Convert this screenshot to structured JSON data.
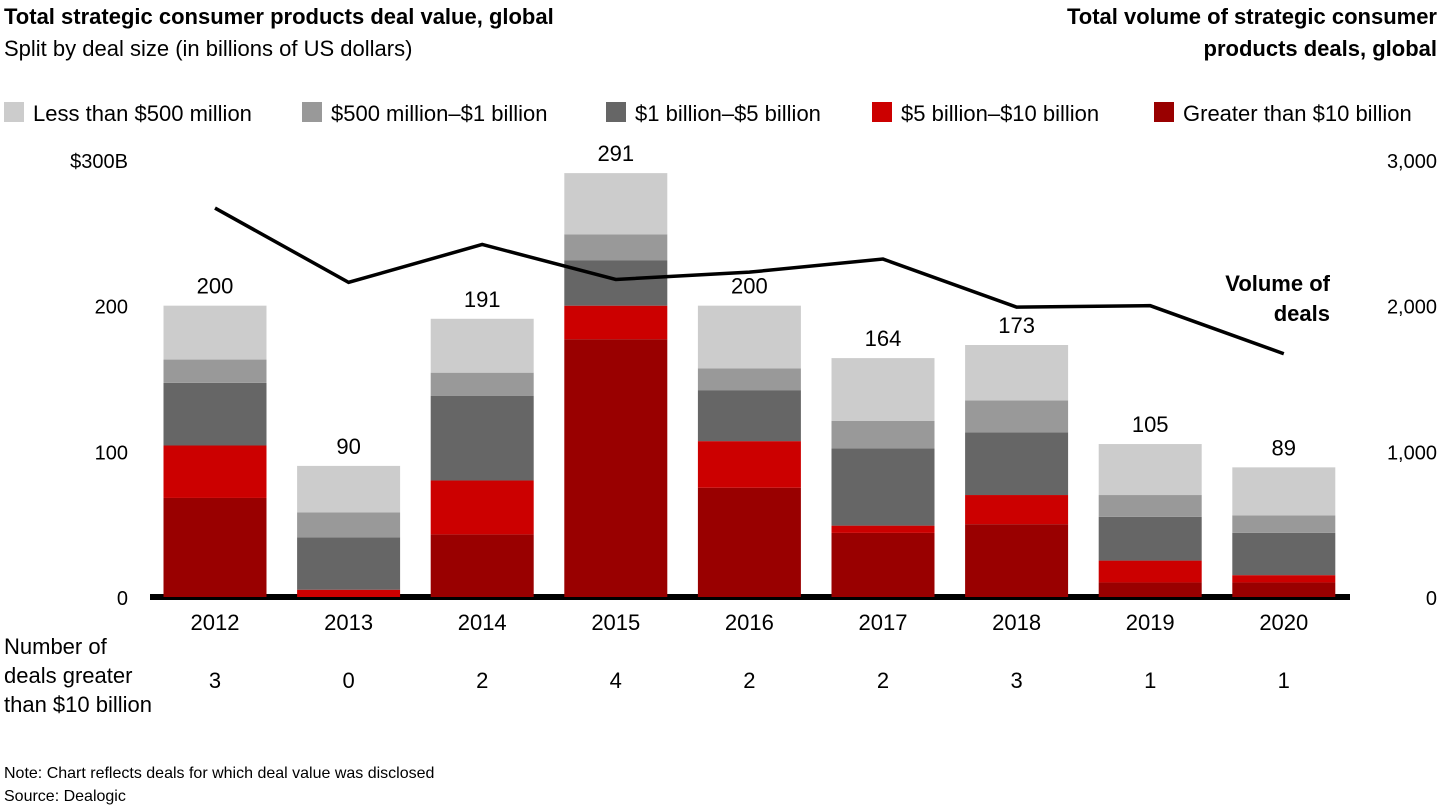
{
  "chart_data": {
    "type": "bar",
    "stacked": true,
    "title": "Total strategic consumer products deal value, global",
    "subtitle": "Split by deal size (in billions of US dollars)",
    "right_title": [
      "Total volume of strategic consumer",
      "products deals, global"
    ],
    "categories": [
      "2012",
      "2013",
      "2014",
      "2015",
      "2016",
      "2017",
      "2018",
      "2019",
      "2020"
    ],
    "totals": [
      200,
      90,
      191,
      291,
      200,
      164,
      173,
      105,
      89
    ],
    "series": [
      {
        "name": "Greater than $10 billion",
        "color": "#990000",
        "values": [
          68,
          0,
          43,
          177,
          75,
          44,
          50,
          10,
          10
        ]
      },
      {
        "name": "$5 billion–$10 billion",
        "color": "#cc0000",
        "values": [
          36,
          5,
          37,
          23,
          32,
          5,
          20,
          15,
          5
        ]
      },
      {
        "name": "$1 billion–$5 billion",
        "color": "#666666",
        "values": [
          43,
          36,
          58,
          31,
          35,
          53,
          43,
          30,
          29
        ]
      },
      {
        "name": "$500 million–$1 billion",
        "color": "#999999",
        "values": [
          16,
          17,
          16,
          18,
          15,
          19,
          22,
          15,
          12
        ]
      },
      {
        "name": "Less than $500 million",
        "color": "#cccccc",
        "values": [
          37,
          32,
          37,
          42,
          43,
          43,
          38,
          35,
          33
        ]
      }
    ],
    "legend_order": [
      "Less than $500 million",
      "$500 million–$1 billion",
      "$1 billion–$5 billion",
      "$5 billion–$10 billion",
      "Greater than $10 billion"
    ],
    "line_series": {
      "name": [
        "Volume of",
        "deals"
      ],
      "axis": "right",
      "color": "#000000",
      "values": [
        2670,
        2160,
        2420,
        2180,
        2230,
        2320,
        1990,
        2000,
        1670
      ]
    },
    "y_left": {
      "range": [
        0,
        300
      ],
      "ticks": [
        0,
        100,
        200,
        300
      ],
      "tick_labels": [
        "0",
        "100",
        "200",
        "$300B"
      ]
    },
    "y_right": {
      "range": [
        0,
        3000
      ],
      "ticks": [
        0,
        1000,
        2000,
        3000
      ],
      "tick_labels": [
        "0",
        "1,000",
        "2,000",
        "3,000"
      ]
    },
    "grid": false,
    "legend_placement": "top",
    "deals_row": {
      "label": [
        "Number of",
        "deals greater",
        "than $10 billion"
      ],
      "values": [
        "3",
        "0",
        "2",
        "4",
        "2",
        "2",
        "3",
        "1",
        "1"
      ]
    }
  },
  "footer": {
    "note": "Note: Chart reflects deals for which deal value was disclosed",
    "source": "Source: Dealogic"
  }
}
